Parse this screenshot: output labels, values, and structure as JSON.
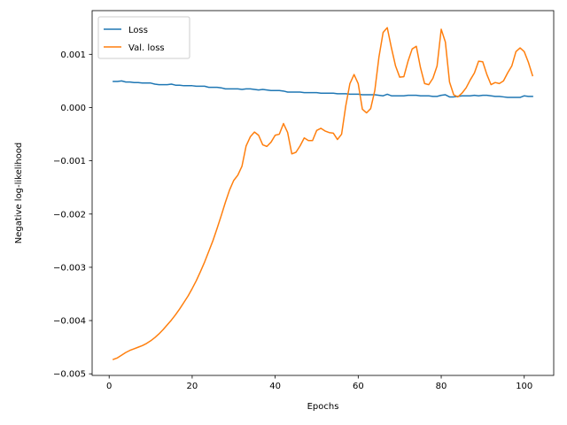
{
  "chart_data": {
    "type": "line",
    "xlabel": "Epochs",
    "ylabel": "Negative log-likelihood",
    "xlim": [
      -4.1,
      107.1
    ],
    "ylim": [
      -0.00503,
      0.00182
    ],
    "xticks": [
      0,
      20,
      40,
      60,
      80,
      100
    ],
    "xtick_labels": [
      "0",
      "20",
      "40",
      "60",
      "80",
      "100"
    ],
    "yticks": [
      -0.005,
      -0.004,
      -0.003,
      -0.002,
      -0.001,
      0.0,
      0.001
    ],
    "ytick_labels": [
      "−0.005",
      "−0.004",
      "−0.003",
      "−0.002",
      "−0.001",
      "0.000",
      "0.001"
    ],
    "grid": false,
    "legend_position": "upper left",
    "series": [
      {
        "name": "Loss",
        "color": "#1f77b4",
        "x": [
          1,
          2,
          3,
          4,
          5,
          6,
          7,
          8,
          9,
          10,
          11,
          12,
          13,
          14,
          15,
          16,
          17,
          18,
          19,
          20,
          21,
          22,
          23,
          24,
          25,
          26,
          27,
          28,
          29,
          30,
          31,
          32,
          33,
          34,
          35,
          36,
          37,
          38,
          39,
          40,
          41,
          42,
          43,
          44,
          45,
          46,
          47,
          48,
          49,
          50,
          51,
          52,
          53,
          54,
          55,
          56,
          57,
          58,
          59,
          60,
          61,
          62,
          63,
          64,
          65,
          66,
          67,
          68,
          69,
          70,
          71,
          72,
          73,
          74,
          75,
          76,
          77,
          78,
          79,
          80,
          81,
          82,
          83,
          84,
          85,
          86,
          87,
          88,
          89,
          90,
          91,
          92,
          93,
          94,
          95,
          96,
          97,
          98,
          99,
          100,
          101,
          102
        ],
        "values": [
          0.00049,
          0.00049,
          0.0005,
          0.00048,
          0.00048,
          0.00047,
          0.00047,
          0.00046,
          0.00046,
          0.00046,
          0.00044,
          0.00043,
          0.00043,
          0.00043,
          0.00044,
          0.00042,
          0.00042,
          0.00041,
          0.00041,
          0.00041,
          0.0004,
          0.0004,
          0.0004,
          0.00038,
          0.00038,
          0.00038,
          0.00037,
          0.00035,
          0.00035,
          0.00035,
          0.00035,
          0.00034,
          0.00035,
          0.00035,
          0.00034,
          0.00033,
          0.00034,
          0.00033,
          0.00032,
          0.00032,
          0.00032,
          0.00031,
          0.00029,
          0.00029,
          0.00029,
          0.00029,
          0.00028,
          0.00028,
          0.00028,
          0.00028,
          0.00027,
          0.00027,
          0.00027,
          0.00027,
          0.00026,
          0.00026,
          0.00026,
          0.00025,
          0.00025,
          0.00025,
          0.00024,
          0.00024,
          0.00024,
          0.00024,
          0.00023,
          0.00022,
          0.00025,
          0.00022,
          0.00022,
          0.00022,
          0.00022,
          0.00023,
          0.00023,
          0.00023,
          0.00022,
          0.00022,
          0.00022,
          0.00021,
          0.00021,
          0.00023,
          0.00024,
          0.0002,
          0.0002,
          0.00021,
          0.00022,
          0.00022,
          0.00022,
          0.00023,
          0.00022,
          0.00023,
          0.00023,
          0.00022,
          0.00021,
          0.00021,
          0.0002,
          0.00019,
          0.00019,
          0.00019,
          0.00019,
          0.00022,
          0.00021,
          0.00021
        ]
      },
      {
        "name": "Val. loss",
        "color": "#ff7f0e",
        "x": [
          1,
          2,
          3,
          4,
          5,
          6,
          7,
          8,
          9,
          10,
          11,
          12,
          13,
          14,
          15,
          16,
          17,
          18,
          19,
          20,
          21,
          22,
          23,
          24,
          25,
          26,
          27,
          28,
          29,
          30,
          31,
          32,
          33,
          34,
          35,
          36,
          37,
          38,
          39,
          40,
          41,
          42,
          43,
          44,
          45,
          46,
          47,
          48,
          49,
          50,
          51,
          52,
          53,
          54,
          55,
          56,
          57,
          58,
          59,
          60,
          61,
          62,
          63,
          64,
          65,
          66,
          67,
          68,
          69,
          70,
          71,
          72,
          73,
          74,
          75,
          76,
          77,
          78,
          79,
          80,
          81,
          82,
          83,
          84,
          85,
          86,
          87,
          88,
          89,
          90,
          91,
          92,
          93,
          94,
          95,
          96,
          97,
          98,
          99,
          100,
          101,
          102
        ],
        "values": [
          -0.00473,
          -0.0047,
          -0.00465,
          -0.0046,
          -0.00456,
          -0.00453,
          -0.0045,
          -0.00447,
          -0.00443,
          -0.00438,
          -0.00432,
          -0.00425,
          -0.00417,
          -0.00408,
          -0.00399,
          -0.00389,
          -0.00378,
          -0.00366,
          -0.00354,
          -0.0034,
          -0.00325,
          -0.00308,
          -0.0029,
          -0.0027,
          -0.0025,
          -0.00227,
          -0.00203,
          -0.00178,
          -0.00155,
          -0.00137,
          -0.00127,
          -0.0011,
          -0.00072,
          -0.00055,
          -0.00046,
          -0.00052,
          -0.0007,
          -0.00073,
          -0.00065,
          -0.00052,
          -0.0005,
          -0.0003,
          -0.00047,
          -0.00087,
          -0.00084,
          -0.00072,
          -0.00057,
          -0.00062,
          -0.00062,
          -0.00043,
          -0.00039,
          -0.00044,
          -0.00047,
          -0.00048,
          -0.0006,
          -0.0005,
          3e-05,
          0.00045,
          0.00062,
          0.00045,
          -3e-05,
          -0.0001,
          -2e-05,
          0.00032,
          0.00095,
          0.00141,
          0.0015,
          0.00112,
          0.00078,
          0.00057,
          0.00058,
          0.00087,
          0.0011,
          0.00115,
          0.00075,
          0.00045,
          0.00043,
          0.00055,
          0.00078,
          0.00147,
          0.00123,
          0.00048,
          0.00024,
          0.0002,
          0.00027,
          0.00037,
          0.00052,
          0.00065,
          0.00087,
          0.00086,
          0.00062,
          0.00043,
          0.00047,
          0.00045,
          0.0005,
          0.00065,
          0.00078,
          0.00105,
          0.00112,
          0.00105,
          0.00085,
          0.0006
        ]
      }
    ]
  }
}
